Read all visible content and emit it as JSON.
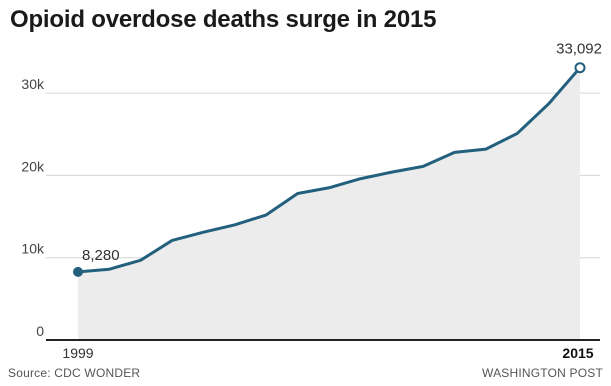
{
  "chart_data": {
    "type": "area",
    "title": "Opioid overdose deaths surge in 2015",
    "x": [
      1999,
      2000,
      2001,
      2002,
      2003,
      2004,
      2005,
      2006,
      2007,
      2008,
      2009,
      2010,
      2011,
      2012,
      2013,
      2014,
      2015
    ],
    "series": [
      {
        "values": [
          8280,
          8600,
          9700,
          12100,
          13100,
          14000,
          15200,
          17800,
          18500,
          19600,
          20400,
          21100,
          22800,
          23200,
          25100,
          28700,
          33092
        ]
      }
    ],
    "ylim": [
      0,
      35000
    ],
    "xlim": [
      1999,
      2015
    ],
    "y_ticks": [
      0,
      10000,
      20000,
      30000
    ],
    "y_tick_labels": [
      "0",
      "10k",
      "20k",
      "30k"
    ],
    "x_tick_labels": [
      "1999",
      "2015"
    ],
    "data_labels": [
      {
        "x": 1999,
        "text": "8,280"
      },
      {
        "x": 2015,
        "text": "33,092"
      }
    ],
    "grid": true,
    "colors": {
      "line": "#23607e",
      "area": "#ececec",
      "grid": "#d6d6d6",
      "axis": "#222222"
    }
  },
  "footer": {
    "source": "Source: CDC WONDER",
    "credit": "WASHINGTON POST"
  }
}
